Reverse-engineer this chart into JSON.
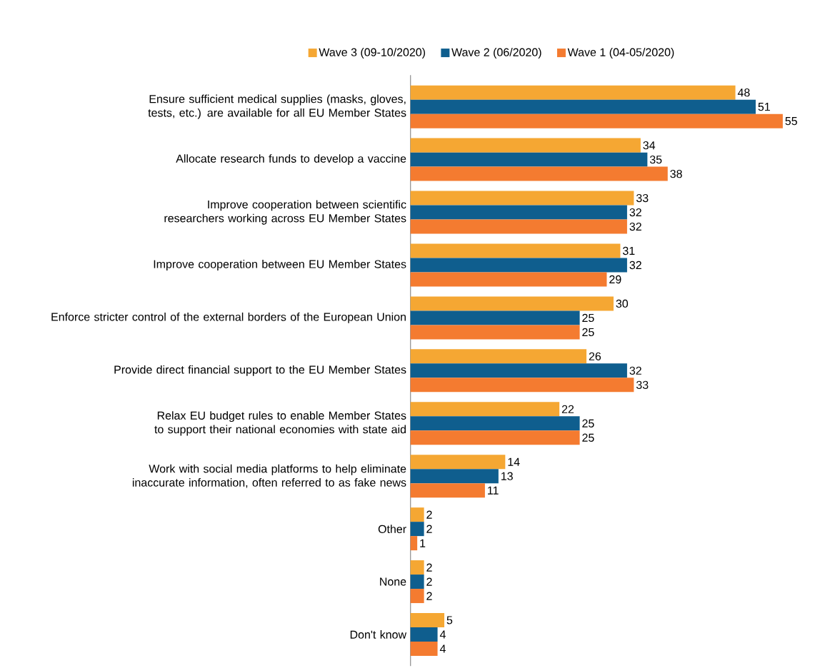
{
  "chart_data": {
    "type": "bar",
    "orientation": "horizontal",
    "categories": [
      "Ensure sufficient medical supplies (masks, gloves, tests, etc.) are available for all EU Member States",
      "Allocate research funds to develop a vaccine",
      "Improve cooperation between scientific researchers working across EU Member States",
      "Improve cooperation between EU Member States",
      "Enforce stricter control of the external borders of the European Union",
      "Provide direct financial support to the EU Member States",
      "Relax EU budget rules to enable Member States to support their national economies with state aid",
      "Work with social media platforms to help eliminate inaccurate information, often referred to as fake news",
      "Other",
      "None",
      "Don't know"
    ],
    "series": [
      {
        "name": "Wave 3 (09-10/2020)",
        "color": "#f5a733",
        "values": [
          48,
          34,
          33,
          31,
          30,
          26,
          22,
          14,
          2,
          2,
          5
        ]
      },
      {
        "name": "Wave 2 (06/2020)",
        "color": "#0f5e8e",
        "values": [
          51,
          35,
          32,
          32,
          25,
          32,
          25,
          13,
          2,
          2,
          4
        ]
      },
      {
        "name": "Wave 1 (04-05/2020)",
        "color": "#f47b30",
        "values": [
          55,
          38,
          32,
          29,
          25,
          33,
          25,
          11,
          1,
          2,
          4
        ]
      }
    ],
    "data_labels": true,
    "legend": "top",
    "tick_labels": "y"
  }
}
